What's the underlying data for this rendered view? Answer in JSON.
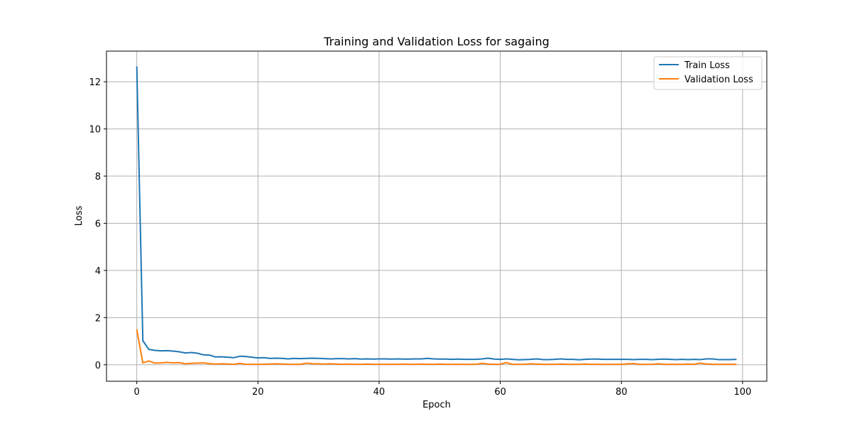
{
  "chart_data": {
    "type": "line",
    "title": "Training and Validation Loss for sagaing",
    "xlabel": "Epoch",
    "ylabel": "Loss",
    "xlim": [
      -5,
      104
    ],
    "ylim": [
      -0.7,
      13.3
    ],
    "xticks": [
      0,
      20,
      40,
      60,
      80,
      100
    ],
    "yticks": [
      0,
      2,
      4,
      6,
      8,
      10,
      12
    ],
    "grid": true,
    "legend_position": "top-right",
    "series": [
      {
        "name": "Train Loss",
        "color": "#1f77b4",
        "x_start": 0,
        "values": [
          12.65,
          1.02,
          0.65,
          0.61,
          0.59,
          0.6,
          0.58,
          0.55,
          0.5,
          0.52,
          0.49,
          0.42,
          0.41,
          0.33,
          0.34,
          0.32,
          0.3,
          0.36,
          0.35,
          0.32,
          0.29,
          0.3,
          0.27,
          0.28,
          0.27,
          0.25,
          0.27,
          0.26,
          0.27,
          0.28,
          0.27,
          0.26,
          0.25,
          0.26,
          0.26,
          0.25,
          0.26,
          0.24,
          0.25,
          0.24,
          0.25,
          0.25,
          0.24,
          0.25,
          0.24,
          0.24,
          0.25,
          0.25,
          0.27,
          0.25,
          0.24,
          0.24,
          0.23,
          0.24,
          0.23,
          0.23,
          0.23,
          0.25,
          0.28,
          0.24,
          0.23,
          0.25,
          0.23,
          0.21,
          0.22,
          0.23,
          0.25,
          0.22,
          0.22,
          0.23,
          0.25,
          0.23,
          0.23,
          0.21,
          0.23,
          0.24,
          0.24,
          0.23,
          0.23,
          0.23,
          0.23,
          0.23,
          0.22,
          0.23,
          0.23,
          0.22,
          0.23,
          0.24,
          0.23,
          0.22,
          0.23,
          0.22,
          0.23,
          0.22,
          0.25,
          0.25,
          0.22,
          0.22,
          0.22,
          0.23
        ]
      },
      {
        "name": "Validation Loss",
        "color": "#ff7f0e",
        "x_start": 0,
        "values": [
          1.5,
          0.08,
          0.16,
          0.07,
          0.08,
          0.1,
          0.08,
          0.09,
          0.04,
          0.06,
          0.07,
          0.08,
          0.05,
          0.03,
          0.04,
          0.03,
          0.02,
          0.06,
          0.02,
          0.02,
          0.02,
          0.02,
          0.03,
          0.04,
          0.03,
          0.02,
          0.02,
          0.02,
          0.07,
          0.04,
          0.04,
          0.03,
          0.04,
          0.03,
          0.02,
          0.03,
          0.02,
          0.02,
          0.03,
          0.02,
          0.02,
          0.02,
          0.02,
          0.02,
          0.03,
          0.02,
          0.02,
          0.03,
          0.02,
          0.02,
          0.03,
          0.02,
          0.02,
          0.02,
          0.02,
          0.02,
          0.02,
          0.06,
          0.03,
          0.02,
          0.02,
          0.09,
          0.02,
          0.02,
          0.02,
          0.04,
          0.03,
          0.02,
          0.02,
          0.02,
          0.03,
          0.02,
          0.02,
          0.02,
          0.03,
          0.02,
          0.02,
          0.02,
          0.02,
          0.02,
          0.02,
          0.04,
          0.05,
          0.02,
          0.02,
          0.02,
          0.04,
          0.02,
          0.02,
          0.02,
          0.02,
          0.03,
          0.02,
          0.07,
          0.03,
          0.02,
          0.02,
          0.02,
          0.02,
          0.02
        ]
      }
    ]
  }
}
